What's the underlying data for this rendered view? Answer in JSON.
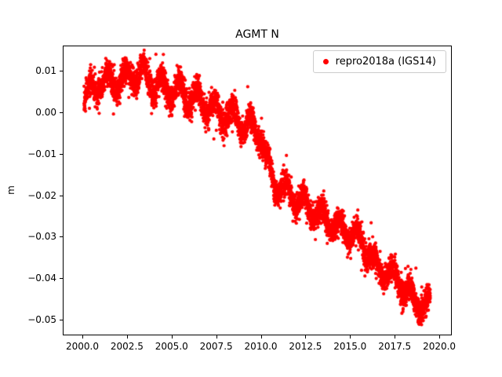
{
  "figure": {
    "title": "AGMT N",
    "ylabel": "m",
    "background": "#ffffff"
  },
  "legend": {
    "label": "repro2018a (IGS14)",
    "marker_color": "#ff0000"
  },
  "chart_data": {
    "type": "scatter",
    "title": "AGMT N",
    "xlabel": "",
    "ylabel": "m",
    "grid": false,
    "legend_position": "upper right",
    "xlim": [
      1998.9,
      2020.7
    ],
    "ylim": [
      -0.0538,
      0.0161
    ],
    "x_ticks": [
      2000.0,
      2002.5,
      2005.0,
      2007.5,
      2010.0,
      2012.5,
      2015.0,
      2017.5,
      2020.0
    ],
    "x_tick_labels": [
      "2000.0",
      "2002.5",
      "2005.0",
      "2007.5",
      "2010.0",
      "2012.5",
      "2015.0",
      "2017.5",
      "2020.0"
    ],
    "y_ticks": [
      0.01,
      0.0,
      -0.01,
      -0.02,
      -0.03,
      -0.04,
      -0.05
    ],
    "y_tick_labels": [
      "0.01",
      "0.00",
      "−0.01",
      "−0.02",
      "−0.03",
      "−0.04",
      "−0.05"
    ],
    "series": [
      {
        "name": "repro2018a (IGS14)",
        "color": "#ff0000",
        "marker": "dot",
        "marker_radius_px": 2.1,
        "x_range": [
          2000.05,
          2019.45
        ],
        "n_points": 5200,
        "trend": [
          [
            2000.05,
            0.003
          ],
          [
            2000.5,
            0.006
          ],
          [
            2001.0,
            0.007
          ],
          [
            2001.5,
            0.008
          ],
          [
            2002.0,
            0.007
          ],
          [
            2002.5,
            0.009
          ],
          [
            2003.0,
            0.009
          ],
          [
            2003.4,
            0.01
          ],
          [
            2004.0,
            0.006
          ],
          [
            2004.5,
            0.007
          ],
          [
            2005.0,
            0.005
          ],
          [
            2005.5,
            0.006
          ],
          [
            2006.0,
            0.003
          ],
          [
            2006.5,
            0.004
          ],
          [
            2007.0,
            0.001
          ],
          [
            2007.5,
            0.001
          ],
          [
            2008.0,
            -0.001
          ],
          [
            2008.5,
            -0.001
          ],
          [
            2009.0,
            -0.003
          ],
          [
            2009.5,
            -0.003
          ],
          [
            2010.0,
            -0.006
          ],
          [
            2010.3,
            -0.012
          ],
          [
            2010.7,
            -0.017
          ],
          [
            2011.0,
            -0.018
          ],
          [
            2011.5,
            -0.019
          ],
          [
            2012.0,
            -0.021
          ],
          [
            2012.5,
            -0.022
          ],
          [
            2013.0,
            -0.024
          ],
          [
            2013.5,
            -0.025
          ],
          [
            2014.0,
            -0.027
          ],
          [
            2014.5,
            -0.028
          ],
          [
            2015.0,
            -0.029
          ],
          [
            2015.5,
            -0.031
          ],
          [
            2016.0,
            -0.033
          ],
          [
            2016.5,
            -0.038
          ],
          [
            2017.0,
            -0.038
          ],
          [
            2017.5,
            -0.04
          ],
          [
            2018.0,
            -0.042
          ],
          [
            2018.5,
            -0.045
          ],
          [
            2019.0,
            -0.046
          ],
          [
            2019.45,
            -0.046
          ]
        ],
        "seasonal_amplitude": 0.0022,
        "seasonal_period": 1.0,
        "noise_sigma": 0.0016,
        "outlier_rate": 0.004,
        "outlier_scale": 0.005,
        "seed": 7
      }
    ]
  }
}
